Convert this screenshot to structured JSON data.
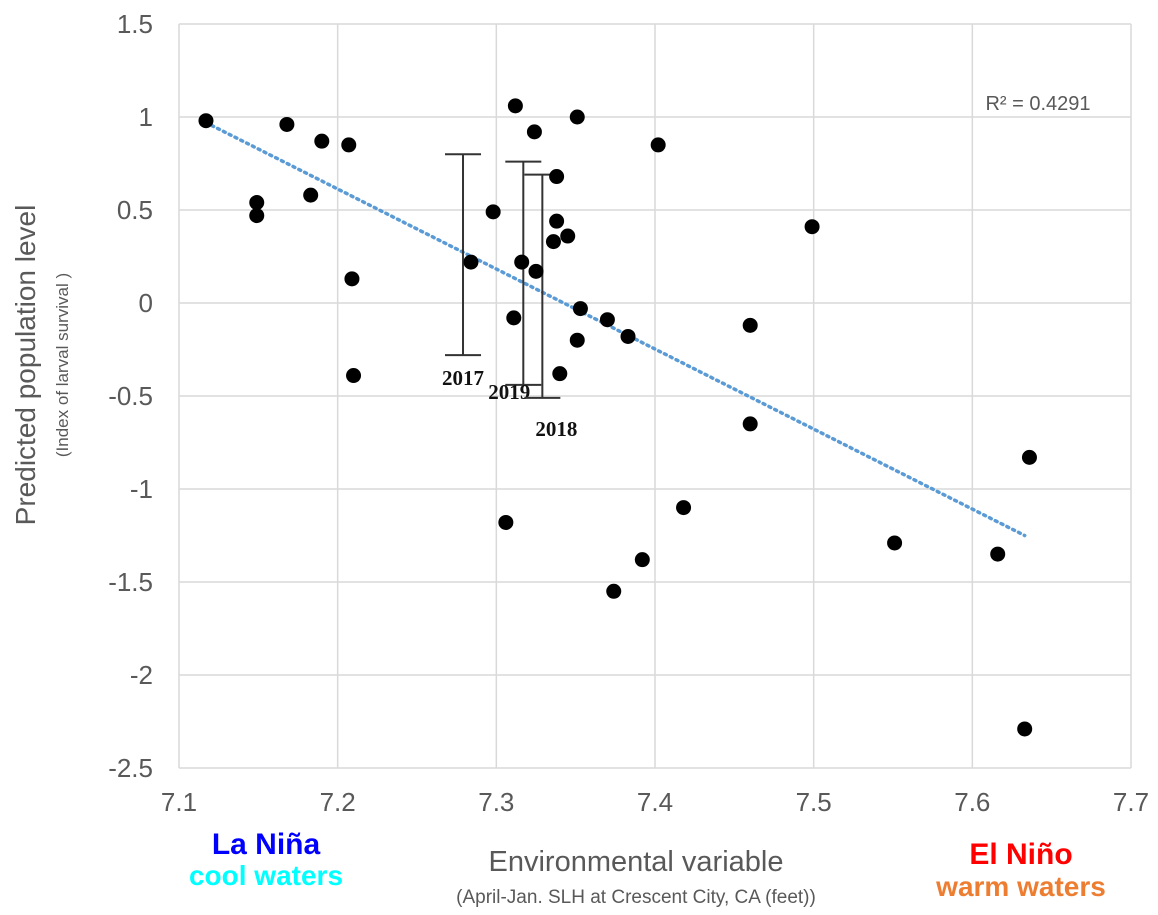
{
  "chart_data": {
    "type": "scatter",
    "xlabel": "Environmental variable",
    "xlabel_sub": "(April-Jan. SLH at Crescent City, CA (feet))",
    "ylabel": "Predicted population level",
    "ylabel_sub": "(Index  of larval  survival   )",
    "xlim": [
      7.1,
      7.7
    ],
    "ylim": [
      -2.5,
      1.5
    ],
    "x_ticks": [
      "7.1",
      "7.2",
      "7.3",
      "7.4",
      "7.5",
      "7.6",
      "7.7"
    ],
    "y_ticks": [
      "1.5",
      "1",
      "0.5",
      "0",
      "-0.5",
      "-1",
      "-1.5",
      "-2",
      "-2.5"
    ],
    "grid": true,
    "points": [
      {
        "x": 7.117,
        "y": 0.98
      },
      {
        "x": 7.149,
        "y": 0.54
      },
      {
        "x": 7.149,
        "y": 0.47
      },
      {
        "x": 7.168,
        "y": 0.96
      },
      {
        "x": 7.183,
        "y": 0.58
      },
      {
        "x": 7.19,
        "y": 0.87
      },
      {
        "x": 7.207,
        "y": 0.85
      },
      {
        "x": 7.209,
        "y": 0.13
      },
      {
        "x": 7.21,
        "y": -0.39
      },
      {
        "x": 7.284,
        "y": 0.22
      },
      {
        "x": 7.298,
        "y": 0.49
      },
      {
        "x": 7.306,
        "y": -1.18
      },
      {
        "x": 7.311,
        "y": -0.08
      },
      {
        "x": 7.312,
        "y": 1.06
      },
      {
        "x": 7.316,
        "y": 0.22
      },
      {
        "x": 7.324,
        "y": 0.92
      },
      {
        "x": 7.325,
        "y": 0.17
      },
      {
        "x": 7.336,
        "y": 0.33
      },
      {
        "x": 7.338,
        "y": 0.68
      },
      {
        "x": 7.338,
        "y": 0.44
      },
      {
        "x": 7.34,
        "y": -0.38
      },
      {
        "x": 7.345,
        "y": 0.36
      },
      {
        "x": 7.351,
        "y": 1.0
      },
      {
        "x": 7.351,
        "y": -0.2
      },
      {
        "x": 7.353,
        "y": -0.03
      },
      {
        "x": 7.37,
        "y": -0.09
      },
      {
        "x": 7.374,
        "y": -1.55
      },
      {
        "x": 7.383,
        "y": -0.18
      },
      {
        "x": 7.392,
        "y": -1.38
      },
      {
        "x": 7.402,
        "y": 0.85
      },
      {
        "x": 7.418,
        "y": -1.1
      },
      {
        "x": 7.46,
        "y": -0.12
      },
      {
        "x": 7.46,
        "y": -0.65
      },
      {
        "x": 7.499,
        "y": 0.41
      },
      {
        "x": 7.551,
        "y": -1.29
      },
      {
        "x": 7.616,
        "y": -1.35
      },
      {
        "x": 7.633,
        "y": -2.29
      },
      {
        "x": 7.636,
        "y": -0.83
      }
    ],
    "trendline": {
      "x1": 7.117,
      "y1": 0.97,
      "x2": 7.633,
      "y2": -1.25,
      "color": "#5b9bd5",
      "label": "R² = 0.4291"
    },
    "error_bars": [
      {
        "label": "2017",
        "x": 7.279,
        "low": -0.28,
        "high": 0.8
      },
      {
        "label": "2019",
        "x": 7.317,
        "low": -0.44,
        "high": 0.76
      },
      {
        "label": "2018",
        "x": 7.329,
        "low": -0.51,
        "high": 0.69
      }
    ],
    "point_color": "#000000",
    "grid_color": "#d9d9d9"
  },
  "annotations": {
    "la_nina": {
      "title": "La Niña",
      "subtitle": "cool waters",
      "title_color": "#0000ff",
      "subtitle_color": "#00ffff"
    },
    "el_nino": {
      "title": "El Niño",
      "subtitle": "warm waters",
      "title_color": "#ff0000",
      "subtitle_color": "#ed7d31"
    }
  }
}
